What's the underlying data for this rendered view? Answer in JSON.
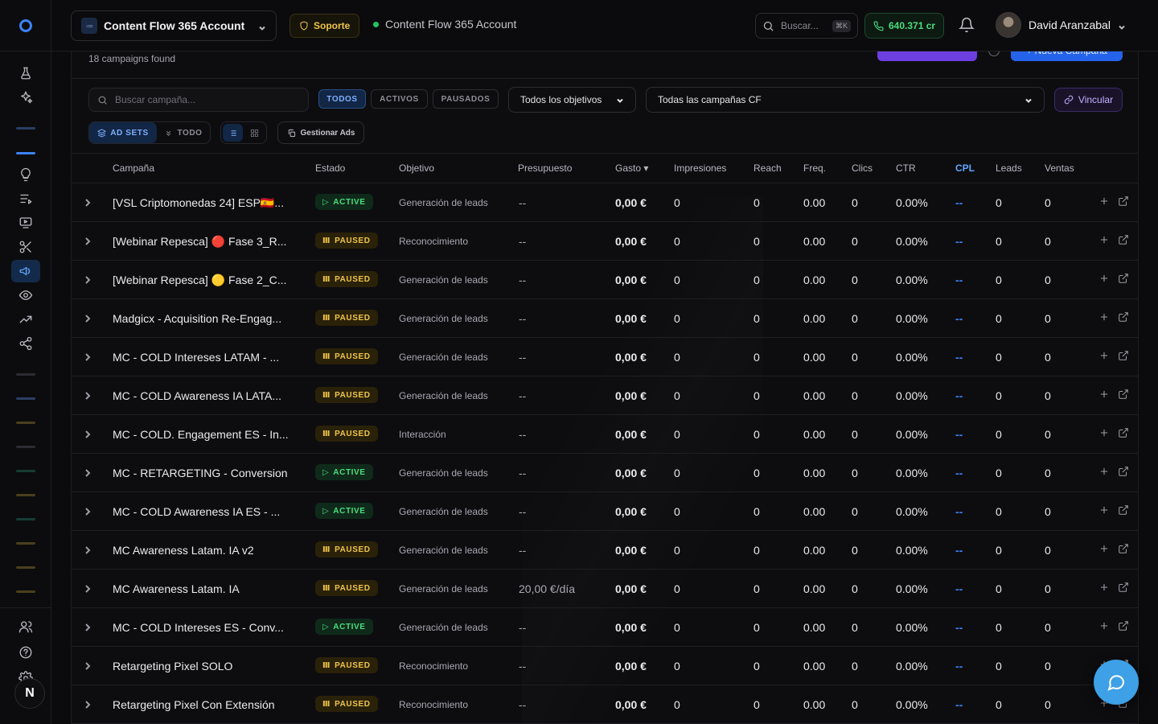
{
  "topbar": {
    "account_name": "Content Flow 365 Account",
    "support_label": "Soporte",
    "account_status": "Content Flow 365 Account",
    "search_placeholder": "Buscar...",
    "search_shortcut": "⌘K",
    "credits": "640.371 cr",
    "user_name": "David Aranzabal"
  },
  "sidebar": {
    "avatar_letter": "N"
  },
  "panel": {
    "campaign_count": "18 campaigns found",
    "btn_purple_label": "",
    "btn_new_label": "+ Nueva Campaña"
  },
  "filters": {
    "search_placeholder": "Buscar campaña...",
    "status_pills": [
      "TODOS",
      "ACTIVOS",
      "PAUSADOS"
    ],
    "objective_select": "Todos los objetivos",
    "cf_select": "Todas las campañas CF",
    "link_label": "Vincular",
    "seg_adsets": "AD SETS",
    "seg_todo": "TODO",
    "manage_ads": "Gestionar Ads"
  },
  "table": {
    "headers": {
      "campaign": "Campaña",
      "status": "Estado",
      "objective": "Objetivo",
      "budget": "Presupuesto",
      "spend": "Gasto ▾",
      "impressions": "Impresiones",
      "reach": "Reach",
      "freq": "Freq.",
      "clicks": "Clics",
      "ctr": "CTR",
      "cpl": "CPL",
      "leads": "Leads",
      "sales": "Ventas"
    },
    "rows": [
      {
        "name": "[VSL Criptomonedas 24] ESP🇪🇸...",
        "status": "ACTIVE",
        "objective": "Generación de leads",
        "budget": "--",
        "spend": "0,00 €",
        "impressions": "0",
        "reach": "0",
        "freq": "0.00",
        "clicks": "0",
        "ctr": "0.00%",
        "cpl": "--",
        "leads": "0",
        "sales": "0"
      },
      {
        "name": "[Webinar Repesca] 🔴 Fase 3_R...",
        "status": "PAUSED",
        "objective": "Reconocimiento",
        "budget": "--",
        "spend": "0,00 €",
        "impressions": "0",
        "reach": "0",
        "freq": "0.00",
        "clicks": "0",
        "ctr": "0.00%",
        "cpl": "--",
        "leads": "0",
        "sales": "0"
      },
      {
        "name": "[Webinar Repesca] 🟡 Fase 2_C...",
        "status": "PAUSED",
        "objective": "Generación de leads",
        "budget": "--",
        "spend": "0,00 €",
        "impressions": "0",
        "reach": "0",
        "freq": "0.00",
        "clicks": "0",
        "ctr": "0.00%",
        "cpl": "--",
        "leads": "0",
        "sales": "0"
      },
      {
        "name": "Madgicx - Acquisition Re-Engag...",
        "status": "PAUSED",
        "objective": "Generación de leads",
        "budget": "--",
        "spend": "0,00 €",
        "impressions": "0",
        "reach": "0",
        "freq": "0.00",
        "clicks": "0",
        "ctr": "0.00%",
        "cpl": "--",
        "leads": "0",
        "sales": "0"
      },
      {
        "name": "MC - COLD Intereses LATAM - ...",
        "status": "PAUSED",
        "objective": "Generación de leads",
        "budget": "--",
        "spend": "0,00 €",
        "impressions": "0",
        "reach": "0",
        "freq": "0.00",
        "clicks": "0",
        "ctr": "0.00%",
        "cpl": "--",
        "leads": "0",
        "sales": "0"
      },
      {
        "name": "MC - COLD Awareness IA LATA...",
        "status": "PAUSED",
        "objective": "Generación de leads",
        "budget": "--",
        "spend": "0,00 €",
        "impressions": "0",
        "reach": "0",
        "freq": "0.00",
        "clicks": "0",
        "ctr": "0.00%",
        "cpl": "--",
        "leads": "0",
        "sales": "0"
      },
      {
        "name": "MC - COLD. Engagement ES - In...",
        "status": "PAUSED",
        "objective": "Interacción",
        "budget": "--",
        "spend": "0,00 €",
        "impressions": "0",
        "reach": "0",
        "freq": "0.00",
        "clicks": "0",
        "ctr": "0.00%",
        "cpl": "--",
        "leads": "0",
        "sales": "0"
      },
      {
        "name": "MC - RETARGETING - Conversion",
        "status": "ACTIVE",
        "objective": "Generación de leads",
        "budget": "--",
        "spend": "0,00 €",
        "impressions": "0",
        "reach": "0",
        "freq": "0.00",
        "clicks": "0",
        "ctr": "0.00%",
        "cpl": "--",
        "leads": "0",
        "sales": "0"
      },
      {
        "name": "MC - COLD Awareness IA ES - ...",
        "status": "ACTIVE",
        "objective": "Generación de leads",
        "budget": "--",
        "spend": "0,00 €",
        "impressions": "0",
        "reach": "0",
        "freq": "0.00",
        "clicks": "0",
        "ctr": "0.00%",
        "cpl": "--",
        "leads": "0",
        "sales": "0"
      },
      {
        "name": "MC Awareness Latam. IA v2",
        "status": "PAUSED",
        "objective": "Generación de leads",
        "budget": "--",
        "spend": "0,00 €",
        "impressions": "0",
        "reach": "0",
        "freq": "0.00",
        "clicks": "0",
        "ctr": "0.00%",
        "cpl": "--",
        "leads": "0",
        "sales": "0"
      },
      {
        "name": "MC Awareness Latam. IA",
        "status": "PAUSED",
        "objective": "Generación de leads",
        "budget": "20,00 €/día",
        "spend": "0,00 €",
        "impressions": "0",
        "reach": "0",
        "freq": "0.00",
        "clicks": "0",
        "ctr": "0.00%",
        "cpl": "--",
        "leads": "0",
        "sales": "0"
      },
      {
        "name": "MC - COLD Intereses ES - Conv...",
        "status": "ACTIVE",
        "objective": "Generación de leads",
        "budget": "--",
        "spend": "0,00 €",
        "impressions": "0",
        "reach": "0",
        "freq": "0.00",
        "clicks": "0",
        "ctr": "0.00%",
        "cpl": "--",
        "leads": "0",
        "sales": "0"
      },
      {
        "name": "Retargeting Pixel SOLO",
        "status": "PAUSED",
        "objective": "Reconocimiento",
        "budget": "--",
        "spend": "0,00 €",
        "impressions": "0",
        "reach": "0",
        "freq": "0.00",
        "clicks": "0",
        "ctr": "0.00%",
        "cpl": "--",
        "leads": "0",
        "sales": "0"
      },
      {
        "name": "Retargeting Pixel Con Extensión",
        "status": "PAUSED",
        "objective": "Reconocimiento",
        "budget": "--",
        "spend": "0,00 €",
        "impressions": "0",
        "reach": "0",
        "freq": "0.00",
        "clicks": "0",
        "ctr": "0.00%",
        "cpl": "--",
        "leads": "0",
        "sales": "0"
      }
    ]
  },
  "colors": {
    "accent_blue": "#3b82f6",
    "active_green": "#4ade80",
    "paused_gold": "#f0c54a",
    "chat_fab": "#3ea0e6"
  },
  "icons": {
    "sidebar": [
      "flask-icon",
      "sparkles-icon",
      "lightbulb-icon",
      "list-icon",
      "monitor-play-icon",
      "scissors-icon",
      "megaphone-icon",
      "eye-icon",
      "trending-up-icon",
      "share-icon",
      "users-icon",
      "help-circle-icon",
      "gear-icon"
    ],
    "chat": "chat-bubble-icon"
  }
}
